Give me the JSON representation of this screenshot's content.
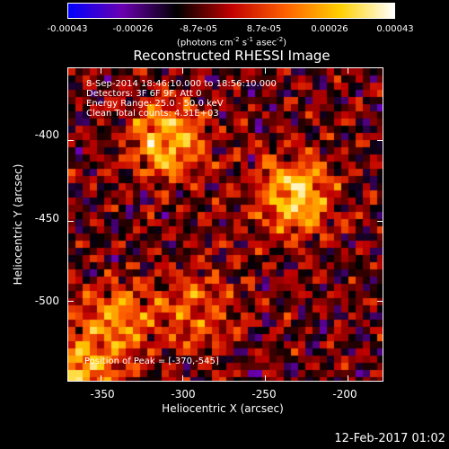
{
  "colorbar": {
    "ticks": [
      "-0.00043",
      "-0.00026",
      "-8.7e-05",
      "8.7e-05",
      "0.00026",
      "0.00043"
    ],
    "units_prefix": "(photons cm",
    "units_exp1": "-2",
    "units_mid1": " s",
    "units_exp2": "-1",
    "units_mid2": " asec",
    "units_exp3": "-2",
    "units_suffix": ")"
  },
  "plot": {
    "title": "Reconstructed RHESSI Image",
    "annotation": {
      "line1": "8-Sep-2014 18:46:10.000 to 18:56:10.000",
      "line2": "Detectors: 3F 6F 9F, Att 0",
      "line3": "Energy Range: 25.0 - 50.0 keV",
      "line4": "Clean    Total counts: 4.31E+03"
    },
    "peak_text": "Position of Peak = [-370,-545]"
  },
  "footer": {
    "timestamp": "12-Feb-2017 01:02"
  },
  "chart_data": {
    "type": "heatmap",
    "title": "Reconstructed RHESSI Image",
    "xlabel": "Heliocentric X (arcsec)",
    "ylabel": "Heliocentric Y (arcsec)",
    "xlim": [
      -370,
      -178
    ],
    "ylim": [
      -550,
      -355
    ],
    "x_ticks": [
      "-350",
      "-300",
      "-250",
      "-200"
    ],
    "y_ticks": [
      "-400",
      "-450",
      "-500"
    ],
    "colorbar_range": [
      -0.00043,
      0.00043
    ],
    "colormap": [
      "#0000ff",
      "#6a00b0",
      "#000000",
      "#c00000",
      "#ff6000",
      "#ffd000",
      "#ffffff"
    ],
    "sources": [
      {
        "x": -310,
        "y": -400,
        "intensity": 0.95
      },
      {
        "x": -232,
        "y": -435,
        "intensity": 1.0
      },
      {
        "x": -340,
        "y": -510,
        "intensity": 0.7
      },
      {
        "x": -290,
        "y": -505,
        "intensity": 0.55
      },
      {
        "x": -365,
        "y": -545,
        "intensity": 0.9
      }
    ],
    "peak_position": [
      -370,
      -545
    ]
  }
}
